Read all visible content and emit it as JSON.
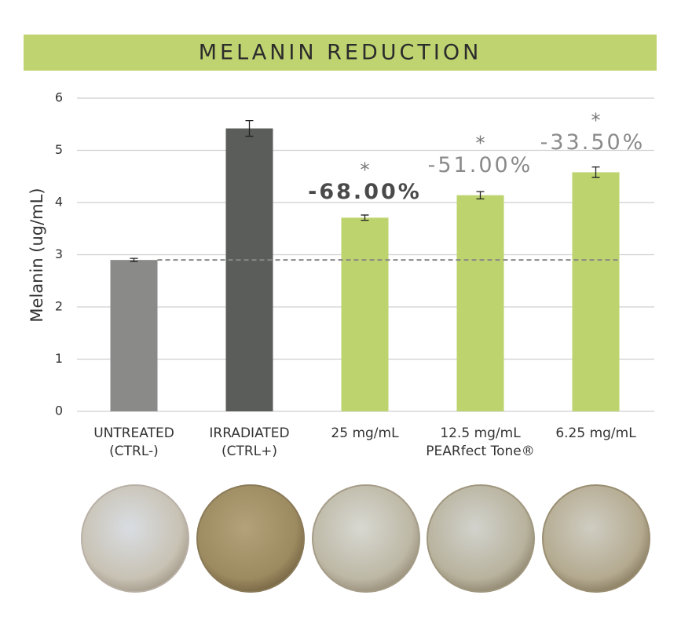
{
  "chart_data": {
    "type": "bar",
    "title": "MELANIN REDUCTION",
    "y_label": "Melanin (ug/mL)",
    "categories": [
      "UNTREATED\n(CTRL-)",
      "IRRADIATED\n(CTRL+)",
      "25 mg/mL",
      "12.5 mg/mL",
      "6.25 mg/mL"
    ],
    "group_label": "PEARfect Tone®",
    "values": [
      2.9,
      5.42,
      3.71,
      4.14,
      4.58
    ],
    "errors": [
      0.03,
      0.15,
      0.05,
      0.07,
      0.1
    ],
    "colors": [
      "#8a8a89",
      "#5b5d5a",
      "#bdd36e",
      "#bdd36e",
      "#bdd36e"
    ],
    "annotations": [
      null,
      null,
      "-68.00%",
      "-51.00%",
      "-33.50%"
    ],
    "significance": [
      null,
      null,
      "*",
      "*",
      "*"
    ],
    "ylim": [
      0,
      6
    ],
    "yticks": [
      0,
      1,
      2,
      3,
      4,
      5,
      6
    ],
    "grid": true
  }
}
